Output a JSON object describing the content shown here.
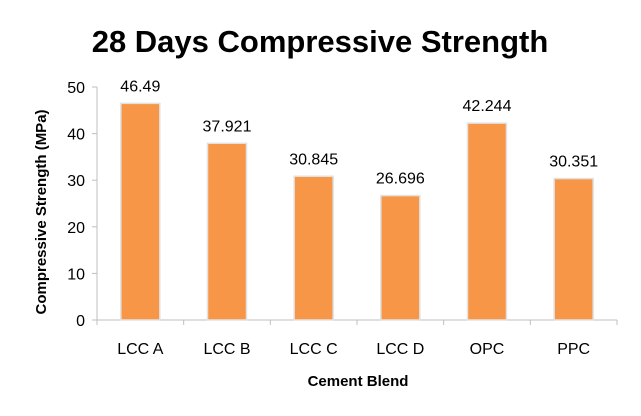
{
  "colors": {
    "bar": "#f79646",
    "bar_edge": "#e2e2e2"
  },
  "chart_data": {
    "type": "bar",
    "title": "28 Days Compressive Strength",
    "xlabel": "Cement Blend",
    "ylabel": "Compressive Strength (MPa)",
    "categories": [
      "LCC A",
      "LCC B",
      "LCC C",
      "LCC D",
      "OPC",
      "PPC"
    ],
    "values": [
      46.49,
      37.921,
      30.845,
      26.696,
      42.244,
      30.351
    ],
    "data_labels": [
      "46.49",
      "37.921",
      "30.845",
      "26.696",
      "42.244",
      "30.351"
    ],
    "ylim": [
      0,
      50
    ],
    "yticks": [
      0,
      10,
      20,
      30,
      40,
      50
    ],
    "ytick_labels": [
      "0",
      "10",
      "20",
      "30",
      "40",
      "50"
    ],
    "grid": false,
    "legend": "none"
  }
}
